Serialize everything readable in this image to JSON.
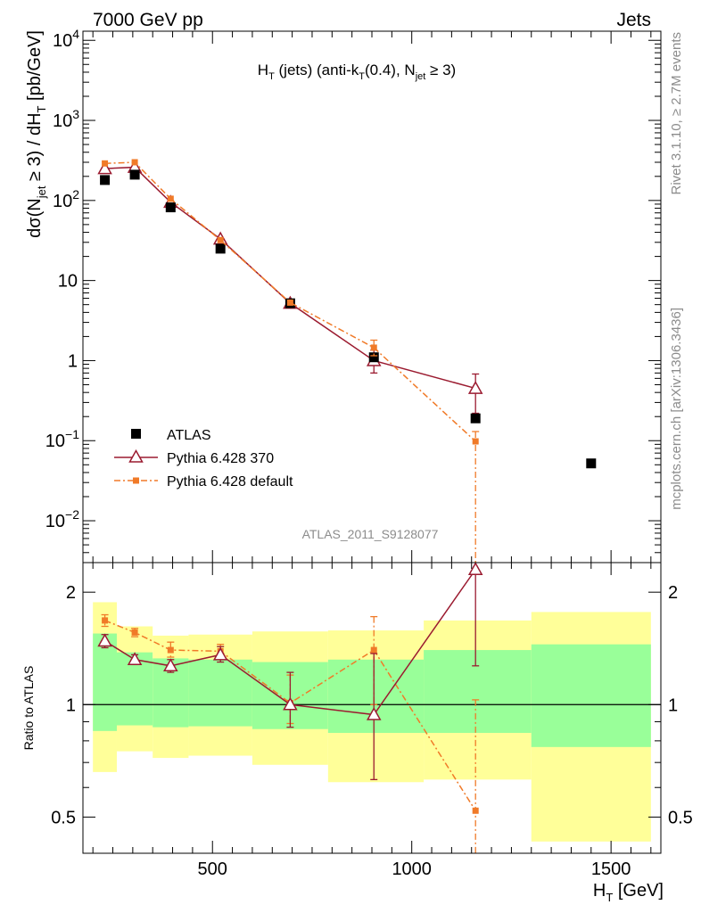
{
  "header": {
    "left": "7000 GeV pp",
    "right": "Jets"
  },
  "side_labels": {
    "rivet": "Rivet 3.1.10, ≥ 2.7M events",
    "mcplots": "mcplots.cern.ch [arXiv:1306.3436]"
  },
  "chart_data": [
    {
      "type": "scatter",
      "panel": "main",
      "title_parts": {
        "a": "H",
        "a_sub": "T",
        "b": " (jets) (anti-k",
        "b_sub": "T",
        "c": "(0.4), N",
        "c_sub": "jet",
        "d": " ≥ 3)"
      },
      "ylabel_parts": {
        "a": "dσ(N",
        "a_sub": "jet",
        "b": " ≥ 3) / dH",
        "b_sub": "T",
        "c": " [pb/GeV]"
      },
      "xlabel_parts": {
        "a": "H",
        "a_sub": "T",
        "b": " [GeV]"
      },
      "xlim": [
        175,
        1625
      ],
      "ylim": [
        0.003,
        13000
      ],
      "log_y": true,
      "x_ticks": [
        500,
        1000,
        1500
      ],
      "x_tick_labels": [
        "500",
        "1000",
        "1500"
      ],
      "y_ticks": [
        {
          "v": 10000,
          "base": "10",
          "exp": "4"
        },
        {
          "v": 1000,
          "base": "10",
          "exp": "3"
        },
        {
          "v": 100,
          "base": "10",
          "exp": "2"
        },
        {
          "v": 10,
          "base": "10",
          "exp": ""
        },
        {
          "v": 1,
          "base": "1",
          "exp": ""
        },
        {
          "v": 0.1,
          "base": "10",
          "exp": "−1"
        },
        {
          "v": 0.01,
          "base": "10",
          "exp": "−2"
        }
      ],
      "watermark": "ATLAS_2011_S9128077",
      "legend_position": "lower-left",
      "series": [
        {
          "name": "ATLAS",
          "color": "#000000",
          "marker": "square",
          "x": [
            230,
            305,
            395,
            520,
            695,
            905,
            1160,
            1450
          ],
          "y": [
            180,
            210,
            82,
            25,
            5.2,
            1.1,
            0.19,
            0.052
          ],
          "yerr": [
            null,
            null,
            null,
            null,
            null,
            null,
            null,
            null
          ]
        },
        {
          "name": "Pythia 6.428 370",
          "color": "#9b1b30",
          "marker": "open-triangle",
          "line": "solid",
          "x": [
            230,
            305,
            395,
            520,
            695,
            905,
            1160
          ],
          "y": [
            250,
            260,
            95,
            33,
            5.2,
            1.0,
            0.45
          ],
          "yerr": [
            null,
            null,
            null,
            null,
            null,
            [
              0.7,
              1.35
            ],
            [
              0.22,
              0.68
            ]
          ]
        },
        {
          "name": "Pythia 6.428 default",
          "color": "#f07a28",
          "marker": "square-small",
          "line": "dashdot",
          "x": [
            230,
            305,
            395,
            520,
            695,
            905,
            1160
          ],
          "y": [
            290,
            300,
            105,
            32,
            5.3,
            1.45,
            0.098
          ],
          "yerr": [
            null,
            null,
            null,
            null,
            null,
            [
              1.15,
              1.8
            ],
            [
              0.0001,
              0.13
            ]
          ]
        }
      ]
    },
    {
      "type": "scatter",
      "panel": "ratio",
      "ylabel": "Ratio to ATLAS",
      "xlim": [
        175,
        1625
      ],
      "ylim": [
        0.4,
        2.4
      ],
      "log_y": true,
      "y_ticks": [
        0.5,
        1,
        2
      ],
      "y_tick_labels": [
        "0.5",
        "1",
        "2"
      ],
      "reference_line": 1,
      "bands": [
        {
          "x0": 200,
          "x1": 260,
          "green": [
            0.85,
            1.55
          ],
          "yellow": [
            0.66,
            1.88
          ]
        },
        {
          "x0": 260,
          "x1": 350,
          "green": [
            0.88,
            1.38
          ],
          "yellow": [
            0.75,
            1.62
          ]
        },
        {
          "x0": 350,
          "x1": 440,
          "green": [
            0.87,
            1.33
          ],
          "yellow": [
            0.72,
            1.53
          ]
        },
        {
          "x0": 440,
          "x1": 600,
          "green": [
            0.875,
            1.32
          ],
          "yellow": [
            0.73,
            1.54
          ]
        },
        {
          "x0": 600,
          "x1": 790,
          "green": [
            0.86,
            1.3
          ],
          "yellow": [
            0.69,
            1.57
          ]
        },
        {
          "x0": 790,
          "x1": 1030,
          "green": [
            0.84,
            1.32
          ],
          "yellow": [
            0.62,
            1.58
          ]
        },
        {
          "x0": 1030,
          "x1": 1300,
          "green": [
            0.84,
            1.4
          ],
          "yellow": [
            0.63,
            1.68
          ]
        },
        {
          "x0": 1300,
          "x1": 1600,
          "green": [
            0.77,
            1.45
          ],
          "yellow": [
            0.43,
            1.77
          ]
        }
      ],
      "series": [
        {
          "name": "Pythia 6.428 370",
          "color": "#9b1b30",
          "marker": "open-triangle",
          "line": "solid",
          "x": [
            230,
            305,
            395,
            520,
            695,
            905,
            1160
          ],
          "y": [
            1.48,
            1.32,
            1.27,
            1.36,
            1.0,
            0.94,
            2.3
          ],
          "yerr": [
            [
              1.42,
              1.54
            ],
            [
              1.28,
              1.36
            ],
            [
              1.22,
              1.32
            ],
            [
              1.3,
              1.43
            ],
            [
              0.87,
              1.22
            ],
            [
              0.63,
              1.37
            ],
            [
              1.27,
              2.3
            ]
          ]
        },
        {
          "name": "Pythia 6.428 default",
          "color": "#f07a28",
          "marker": "square-small",
          "line": "dashdot",
          "x": [
            230,
            305,
            395,
            520,
            695,
            905,
            1160
          ],
          "y": [
            1.68,
            1.56,
            1.4,
            1.39,
            1.01,
            1.4,
            0.52
          ],
          "yerr": [
            [
              1.62,
              1.74
            ],
            [
              1.52,
              1.6
            ],
            [
              1.34,
              1.47
            ],
            [
              1.34,
              1.45
            ],
            [
              0.89,
              1.2
            ],
            [
              1.0,
              1.72
            ],
            [
              0.4,
              1.03
            ]
          ]
        }
      ]
    }
  ]
}
